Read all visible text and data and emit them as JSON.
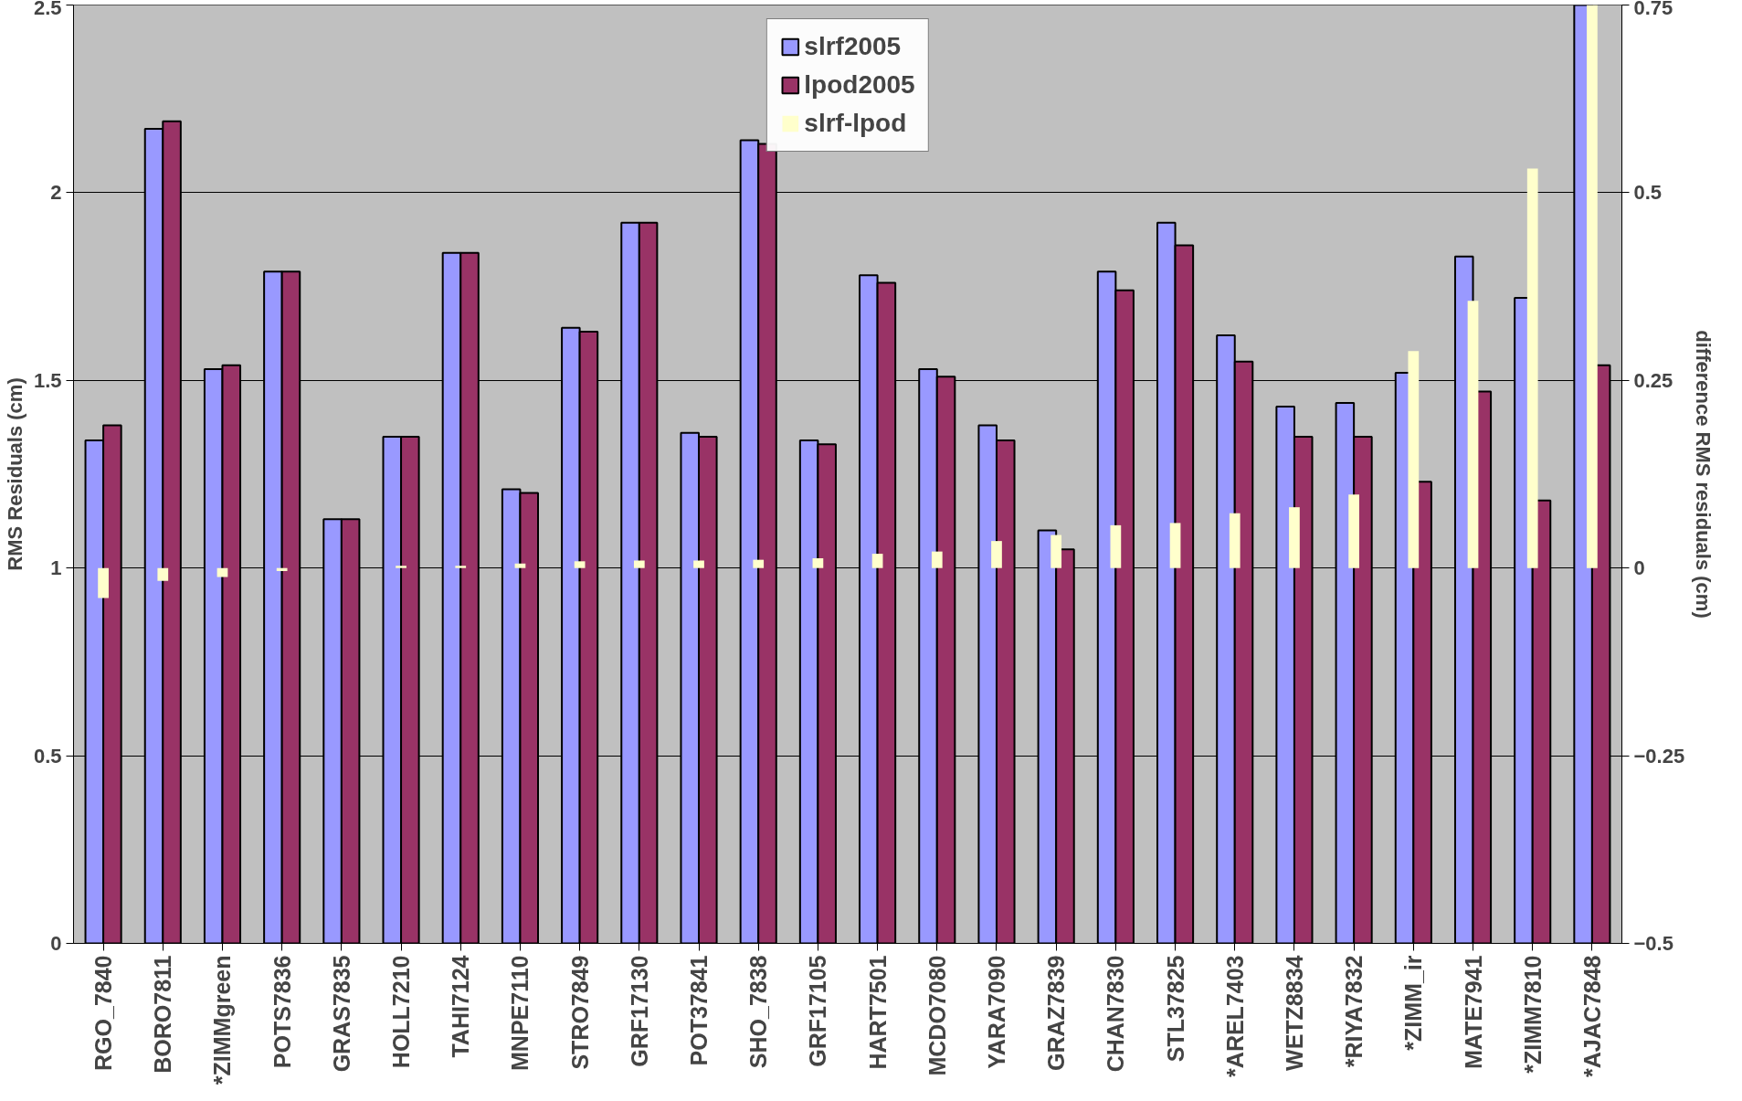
{
  "chart_data": {
    "type": "bar",
    "ylabel": "RMS Residuals (cm)",
    "y2label": "difference RMS residuals (cm)",
    "categories": [
      "RGO_7840",
      "BORO7811",
      "*ZIMMgreen",
      "POTS7836",
      "GRAS7835",
      "HOLL7210",
      "TAHI7124",
      "MNPE7110",
      "STRO7849",
      "GRF17130",
      "POT37841",
      "SHO_7838",
      "GRF17105",
      "HART7501",
      "MCDO7080",
      "YARA7090",
      "GRAZ7839",
      "CHAN7830",
      "STL37825",
      "*AREL7403",
      "WETZ8834",
      "*RIYA7832",
      "*ZIMM_ir",
      "MATE7941",
      "*ZIMM7810",
      "*AJAC7848"
    ],
    "series": [
      {
        "name": "slrf2005",
        "color": "#9999ff",
        "values": [
          1.34,
          2.17,
          1.53,
          1.79,
          1.13,
          1.35,
          1.84,
          1.21,
          1.64,
          1.92,
          1.36,
          2.14,
          1.34,
          1.78,
          1.53,
          1.38,
          1.1,
          1.79,
          1.92,
          1.62,
          1.43,
          1.44,
          1.52,
          1.83,
          1.72,
          2.5
        ]
      },
      {
        "name": "lpod2005",
        "color": "#993366",
        "values": [
          1.38,
          2.19,
          1.54,
          1.79,
          1.13,
          1.35,
          1.84,
          1.2,
          1.63,
          1.92,
          1.35,
          2.13,
          1.33,
          1.76,
          1.51,
          1.34,
          1.05,
          1.74,
          1.86,
          1.55,
          1.35,
          1.35,
          1.23,
          1.47,
          1.18,
          1.54
        ]
      },
      {
        "name": "slrf-lpod",
        "color": "#ffffcc",
        "axis": "y2",
        "values": [
          -0.04,
          -0.017,
          -0.012,
          -0.004,
          0,
          0.003,
          0.003,
          0.006,
          0.009,
          0.01,
          0.01,
          0.011,
          0.013,
          0.019,
          0.022,
          0.036,
          0.044,
          0.057,
          0.06,
          0.073,
          0.081,
          0.098,
          0.289,
          0.356,
          0.532,
          0.75
        ]
      }
    ],
    "ylim": [
      0,
      2.5
    ],
    "yticks": [
      0,
      0.5,
      1,
      1.5,
      2,
      2.5
    ],
    "y2lim": [
      -0.5,
      0.75
    ],
    "y2ticks": [
      -0.5,
      -0.25,
      0,
      0.25,
      0.5,
      0.75
    ],
    "grid": "y",
    "legend": "top"
  }
}
